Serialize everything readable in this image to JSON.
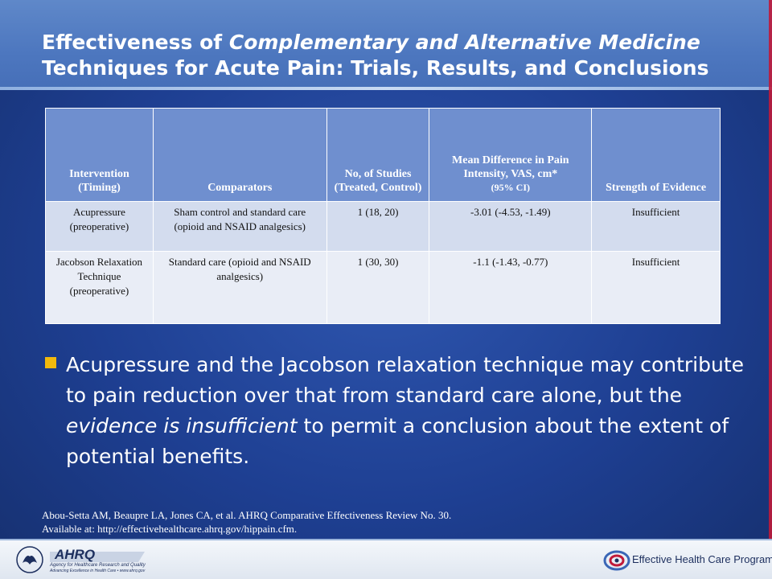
{
  "slide": {
    "title_part1": "Effectiveness of ",
    "title_italic": "Complementary and Alternative Medicine",
    "title_part2": "Techniques for Acute Pain: Trials, Results, and Conclusions"
  },
  "table": {
    "headers": [
      "Intervention (Timing)",
      "Comparators",
      "No, of Studies (Treated, Control)",
      "Mean Difference in Pain Intensity, VAS, cm*",
      "Strength of Evidence"
    ],
    "header_ci": "(95% CI)",
    "rows": [
      {
        "intervention": "Acupressure (preoperative)",
        "comparators": "Sham control and standard care  (opioid and NSAID analgesics)",
        "studies": "1 (18, 20)",
        "mean_difference": "-3.01 (-4.53, -1.49)",
        "strength": "Insufficient"
      },
      {
        "intervention": "Jacobson Relaxation Technique (preoperative)",
        "comparators": "Standard care (opioid and NSAID analgesics)",
        "studies": "1 (30, 30)",
        "mean_difference": "-1.1 (-1.43, -0.77)",
        "strength": "Insufficient"
      }
    ]
  },
  "bullet": {
    "text_start": "Acupressure and the Jacobson relaxation technique may contribute to pain reduction over that from standard care alone, but the ",
    "text_italic": "evidence is insufficient",
    "text_end": " to permit a conclusion about the extent of potential benefits."
  },
  "citation": {
    "line1": "Abou-Setta AM, Beaupre LA, Jones CA, et al. AHRQ Comparative Effectiveness Review No. 30.",
    "line2": "Available at:  http://effectivehealthcare.ahrq.gov/hippain.cfm."
  },
  "footer": {
    "ahrq_name": "AHRQ",
    "ahrq_tagline1": "Agency for Healthcare Research and Quality",
    "ahrq_tagline2": "Advancing Excellence in Health Care • www.ahrq.gov",
    "program_name": "Effective Health Care Program",
    "colors": {
      "accent": "#f2b90c",
      "header_blue": "#6f8fcf",
      "background": "#1e3f92"
    },
    "icons": [
      "hhs-eagle-icon",
      "ahrq-logo-icon",
      "ehc-program-icon"
    ]
  }
}
